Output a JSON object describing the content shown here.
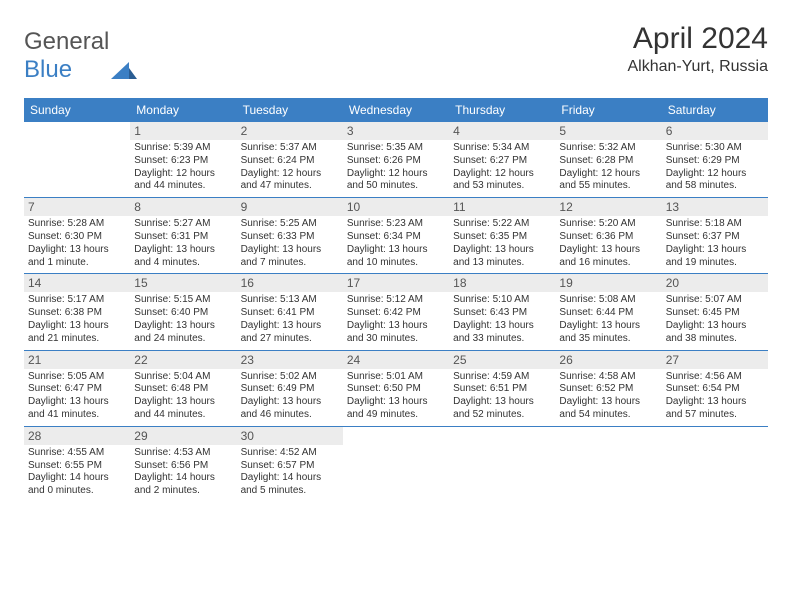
{
  "logo": {
    "word1": "General",
    "word2": "Blue"
  },
  "title": "April 2024",
  "subtitle": "Alkhan-Yurt, Russia",
  "daysOfWeek": [
    "Sunday",
    "Monday",
    "Tuesday",
    "Wednesday",
    "Thursday",
    "Friday",
    "Saturday"
  ],
  "colors": {
    "accent": "#3b7fc4",
    "headerBg": "#3b7fc4",
    "headerText": "#ffffff",
    "dayNumBg": "#ececec",
    "dayNumText": "#555555",
    "bodyText": "#333333",
    "pageBg": "#ffffff"
  },
  "weeks": [
    [
      {
        "num": "",
        "sunrise": "",
        "sunset": "",
        "daylight": ""
      },
      {
        "num": "1",
        "sunrise": "Sunrise: 5:39 AM",
        "sunset": "Sunset: 6:23 PM",
        "daylight": "Daylight: 12 hours and 44 minutes."
      },
      {
        "num": "2",
        "sunrise": "Sunrise: 5:37 AM",
        "sunset": "Sunset: 6:24 PM",
        "daylight": "Daylight: 12 hours and 47 minutes."
      },
      {
        "num": "3",
        "sunrise": "Sunrise: 5:35 AM",
        "sunset": "Sunset: 6:26 PM",
        "daylight": "Daylight: 12 hours and 50 minutes."
      },
      {
        "num": "4",
        "sunrise": "Sunrise: 5:34 AM",
        "sunset": "Sunset: 6:27 PM",
        "daylight": "Daylight: 12 hours and 53 minutes."
      },
      {
        "num": "5",
        "sunrise": "Sunrise: 5:32 AM",
        "sunset": "Sunset: 6:28 PM",
        "daylight": "Daylight: 12 hours and 55 minutes."
      },
      {
        "num": "6",
        "sunrise": "Sunrise: 5:30 AM",
        "sunset": "Sunset: 6:29 PM",
        "daylight": "Daylight: 12 hours and 58 minutes."
      }
    ],
    [
      {
        "num": "7",
        "sunrise": "Sunrise: 5:28 AM",
        "sunset": "Sunset: 6:30 PM",
        "daylight": "Daylight: 13 hours and 1 minute."
      },
      {
        "num": "8",
        "sunrise": "Sunrise: 5:27 AM",
        "sunset": "Sunset: 6:31 PM",
        "daylight": "Daylight: 13 hours and 4 minutes."
      },
      {
        "num": "9",
        "sunrise": "Sunrise: 5:25 AM",
        "sunset": "Sunset: 6:33 PM",
        "daylight": "Daylight: 13 hours and 7 minutes."
      },
      {
        "num": "10",
        "sunrise": "Sunrise: 5:23 AM",
        "sunset": "Sunset: 6:34 PM",
        "daylight": "Daylight: 13 hours and 10 minutes."
      },
      {
        "num": "11",
        "sunrise": "Sunrise: 5:22 AM",
        "sunset": "Sunset: 6:35 PM",
        "daylight": "Daylight: 13 hours and 13 minutes."
      },
      {
        "num": "12",
        "sunrise": "Sunrise: 5:20 AM",
        "sunset": "Sunset: 6:36 PM",
        "daylight": "Daylight: 13 hours and 16 minutes."
      },
      {
        "num": "13",
        "sunrise": "Sunrise: 5:18 AM",
        "sunset": "Sunset: 6:37 PM",
        "daylight": "Daylight: 13 hours and 19 minutes."
      }
    ],
    [
      {
        "num": "14",
        "sunrise": "Sunrise: 5:17 AM",
        "sunset": "Sunset: 6:38 PM",
        "daylight": "Daylight: 13 hours and 21 minutes."
      },
      {
        "num": "15",
        "sunrise": "Sunrise: 5:15 AM",
        "sunset": "Sunset: 6:40 PM",
        "daylight": "Daylight: 13 hours and 24 minutes."
      },
      {
        "num": "16",
        "sunrise": "Sunrise: 5:13 AM",
        "sunset": "Sunset: 6:41 PM",
        "daylight": "Daylight: 13 hours and 27 minutes."
      },
      {
        "num": "17",
        "sunrise": "Sunrise: 5:12 AM",
        "sunset": "Sunset: 6:42 PM",
        "daylight": "Daylight: 13 hours and 30 minutes."
      },
      {
        "num": "18",
        "sunrise": "Sunrise: 5:10 AM",
        "sunset": "Sunset: 6:43 PM",
        "daylight": "Daylight: 13 hours and 33 minutes."
      },
      {
        "num": "19",
        "sunrise": "Sunrise: 5:08 AM",
        "sunset": "Sunset: 6:44 PM",
        "daylight": "Daylight: 13 hours and 35 minutes."
      },
      {
        "num": "20",
        "sunrise": "Sunrise: 5:07 AM",
        "sunset": "Sunset: 6:45 PM",
        "daylight": "Daylight: 13 hours and 38 minutes."
      }
    ],
    [
      {
        "num": "21",
        "sunrise": "Sunrise: 5:05 AM",
        "sunset": "Sunset: 6:47 PM",
        "daylight": "Daylight: 13 hours and 41 minutes."
      },
      {
        "num": "22",
        "sunrise": "Sunrise: 5:04 AM",
        "sunset": "Sunset: 6:48 PM",
        "daylight": "Daylight: 13 hours and 44 minutes."
      },
      {
        "num": "23",
        "sunrise": "Sunrise: 5:02 AM",
        "sunset": "Sunset: 6:49 PM",
        "daylight": "Daylight: 13 hours and 46 minutes."
      },
      {
        "num": "24",
        "sunrise": "Sunrise: 5:01 AM",
        "sunset": "Sunset: 6:50 PM",
        "daylight": "Daylight: 13 hours and 49 minutes."
      },
      {
        "num": "25",
        "sunrise": "Sunrise: 4:59 AM",
        "sunset": "Sunset: 6:51 PM",
        "daylight": "Daylight: 13 hours and 52 minutes."
      },
      {
        "num": "26",
        "sunrise": "Sunrise: 4:58 AM",
        "sunset": "Sunset: 6:52 PM",
        "daylight": "Daylight: 13 hours and 54 minutes."
      },
      {
        "num": "27",
        "sunrise": "Sunrise: 4:56 AM",
        "sunset": "Sunset: 6:54 PM",
        "daylight": "Daylight: 13 hours and 57 minutes."
      }
    ],
    [
      {
        "num": "28",
        "sunrise": "Sunrise: 4:55 AM",
        "sunset": "Sunset: 6:55 PM",
        "daylight": "Daylight: 14 hours and 0 minutes."
      },
      {
        "num": "29",
        "sunrise": "Sunrise: 4:53 AM",
        "sunset": "Sunset: 6:56 PM",
        "daylight": "Daylight: 14 hours and 2 minutes."
      },
      {
        "num": "30",
        "sunrise": "Sunrise: 4:52 AM",
        "sunset": "Sunset: 6:57 PM",
        "daylight": "Daylight: 14 hours and 5 minutes."
      },
      {
        "num": "",
        "sunrise": "",
        "sunset": "",
        "daylight": ""
      },
      {
        "num": "",
        "sunrise": "",
        "sunset": "",
        "daylight": ""
      },
      {
        "num": "",
        "sunrise": "",
        "sunset": "",
        "daylight": ""
      },
      {
        "num": "",
        "sunrise": "",
        "sunset": "",
        "daylight": ""
      }
    ]
  ]
}
